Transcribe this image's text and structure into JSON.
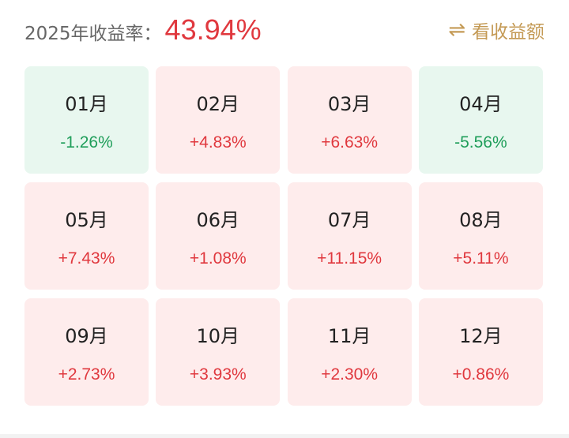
{
  "header": {
    "label": "2025年收益率：",
    "total": "43.94%",
    "toggle_label": "看收益额",
    "toggle_icon": "swap-arrows-icon"
  },
  "colors": {
    "positive": "#e0383e",
    "negative": "#1f9e5a",
    "positive_bg": "#feecec",
    "negative_bg": "#e8f7ef",
    "accent": "#c49a55"
  },
  "months": [
    {
      "month": "01月",
      "value": "-1.26%",
      "trend": "down"
    },
    {
      "month": "02月",
      "value": "+4.83%",
      "trend": "up"
    },
    {
      "month": "03月",
      "value": "+6.63%",
      "trend": "up"
    },
    {
      "month": "04月",
      "value": "-5.56%",
      "trend": "down"
    },
    {
      "month": "05月",
      "value": "+7.43%",
      "trend": "up"
    },
    {
      "month": "06月",
      "value": "+1.08%",
      "trend": "up"
    },
    {
      "month": "07月",
      "value": "+11.15%",
      "trend": "up"
    },
    {
      "month": "08月",
      "value": "+5.11%",
      "trend": "up"
    },
    {
      "month": "09月",
      "value": "+2.73%",
      "trend": "up"
    },
    {
      "month": "10月",
      "value": "+3.93%",
      "trend": "up"
    },
    {
      "month": "11月",
      "value": "+2.30%",
      "trend": "up"
    },
    {
      "month": "12月",
      "value": "+0.86%",
      "trend": "up"
    }
  ]
}
